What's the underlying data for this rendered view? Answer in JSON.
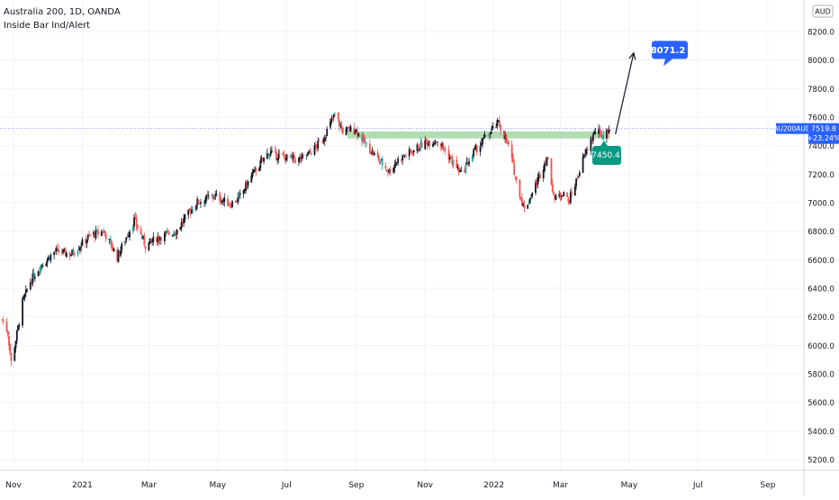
{
  "legend": {
    "symbol_line": "Australia 200, 1D, OANDA",
    "indicator_line": "Inside Bar Ind/Alert"
  },
  "price_axis": {
    "currency_label": "AUD",
    "symbol_badge": "AU200AUD",
    "last_price_label": "7519.8",
    "change_label": "+23.24%",
    "badge_color": "#2962ff"
  },
  "annotations": {
    "target_label": "8071.2",
    "target_color": "#2962ff",
    "support_label": "7450.4",
    "support_color": "#089981",
    "zone_color": "#a5d6a7"
  },
  "colors": {
    "up": "#131722",
    "down": "#ef5350",
    "inside_bar": "#26a69a",
    "grid": "#f0f3fa"
  },
  "chart_data": {
    "type": "candlestick",
    "title": "Australia 200, 1D, OANDA",
    "xlabel": "",
    "ylabel": "",
    "ylim": [
      5100,
      8450
    ],
    "y_ticks": [
      5200,
      5400,
      5600,
      5800,
      6000,
      6200,
      6400,
      6600,
      6800,
      7000,
      7200,
      7400,
      7600,
      7800,
      8000,
      8200
    ],
    "x_tick_labels": [
      "Nov",
      "2021",
      "Mar",
      "May",
      "Jul",
      "Sep",
      "Nov",
      "2022",
      "Mar",
      "May",
      "Jul",
      "Sep"
    ],
    "grid": true,
    "price_path": [
      [
        "2020-10-22",
        6180
      ],
      [
        "2020-10-27",
        6090
      ],
      [
        "2020-10-30",
        5880
      ],
      [
        "2020-11-04",
        6080
      ],
      [
        "2020-11-09",
        6300
      ],
      [
        "2020-11-16",
        6450
      ],
      [
        "2020-11-25",
        6560
      ],
      [
        "2020-12-08",
        6660
      ],
      [
        "2020-12-22",
        6640
      ],
      [
        "2021-01-08",
        6770
      ],
      [
        "2021-01-20",
        6800
      ],
      [
        "2021-02-01",
        6620
      ],
      [
        "2021-02-16",
        6880
      ],
      [
        "2021-02-26",
        6700
      ],
      [
        "2021-03-10",
        6760
      ],
      [
        "2021-03-25",
        6800
      ],
      [
        "2021-04-12",
        7000
      ],
      [
        "2021-04-28",
        7050
      ],
      [
        "2021-05-12",
        6990
      ],
      [
        "2021-05-20",
        7030
      ],
      [
        "2021-06-01",
        7200
      ],
      [
        "2021-06-15",
        7350
      ],
      [
        "2021-06-28",
        7320
      ],
      [
        "2021-07-12",
        7300
      ],
      [
        "2021-07-22",
        7350
      ],
      [
        "2021-08-02",
        7440
      ],
      [
        "2021-08-13",
        7620
      ],
      [
        "2021-08-20",
        7500
      ],
      [
        "2021-08-31",
        7520
      ],
      [
        "2021-09-10",
        7400
      ],
      [
        "2021-09-21",
        7300
      ],
      [
        "2021-09-30",
        7220
      ],
      [
        "2021-10-08",
        7300
      ],
      [
        "2021-10-20",
        7360
      ],
      [
        "2021-11-01",
        7420
      ],
      [
        "2021-11-12",
        7440
      ],
      [
        "2021-11-26",
        7280
      ],
      [
        "2021-12-03",
        7200
      ],
      [
        "2021-12-14",
        7350
      ],
      [
        "2021-12-24",
        7450
      ],
      [
        "2022-01-05",
        7560
      ],
      [
        "2022-01-14",
        7400
      ],
      [
        "2022-01-21",
        7150
      ],
      [
        "2022-01-28",
        6950
      ],
      [
        "2022-02-03",
        7050
      ],
      [
        "2022-02-11",
        7200
      ],
      [
        "2022-02-17",
        7320
      ],
      [
        "2022-02-24",
        7020
      ],
      [
        "2022-03-04",
        7080
      ],
      [
        "2022-03-08",
        7000
      ],
      [
        "2022-03-15",
        7150
      ],
      [
        "2022-03-21",
        7300
      ],
      [
        "2022-03-28",
        7440
      ],
      [
        "2022-04-01",
        7500
      ],
      [
        "2022-04-08",
        7470
      ],
      [
        "2022-04-14",
        7519.8
      ]
    ],
    "resistance_zone": [
      7450.4,
      7500
    ],
    "projection": {
      "from": [
        "2022-04-14",
        7480
      ],
      "to": [
        "2022-05-05",
        8050
      ],
      "target": 8071.2
    },
    "last_price": 7519.8,
    "support_level": 7450.4
  }
}
